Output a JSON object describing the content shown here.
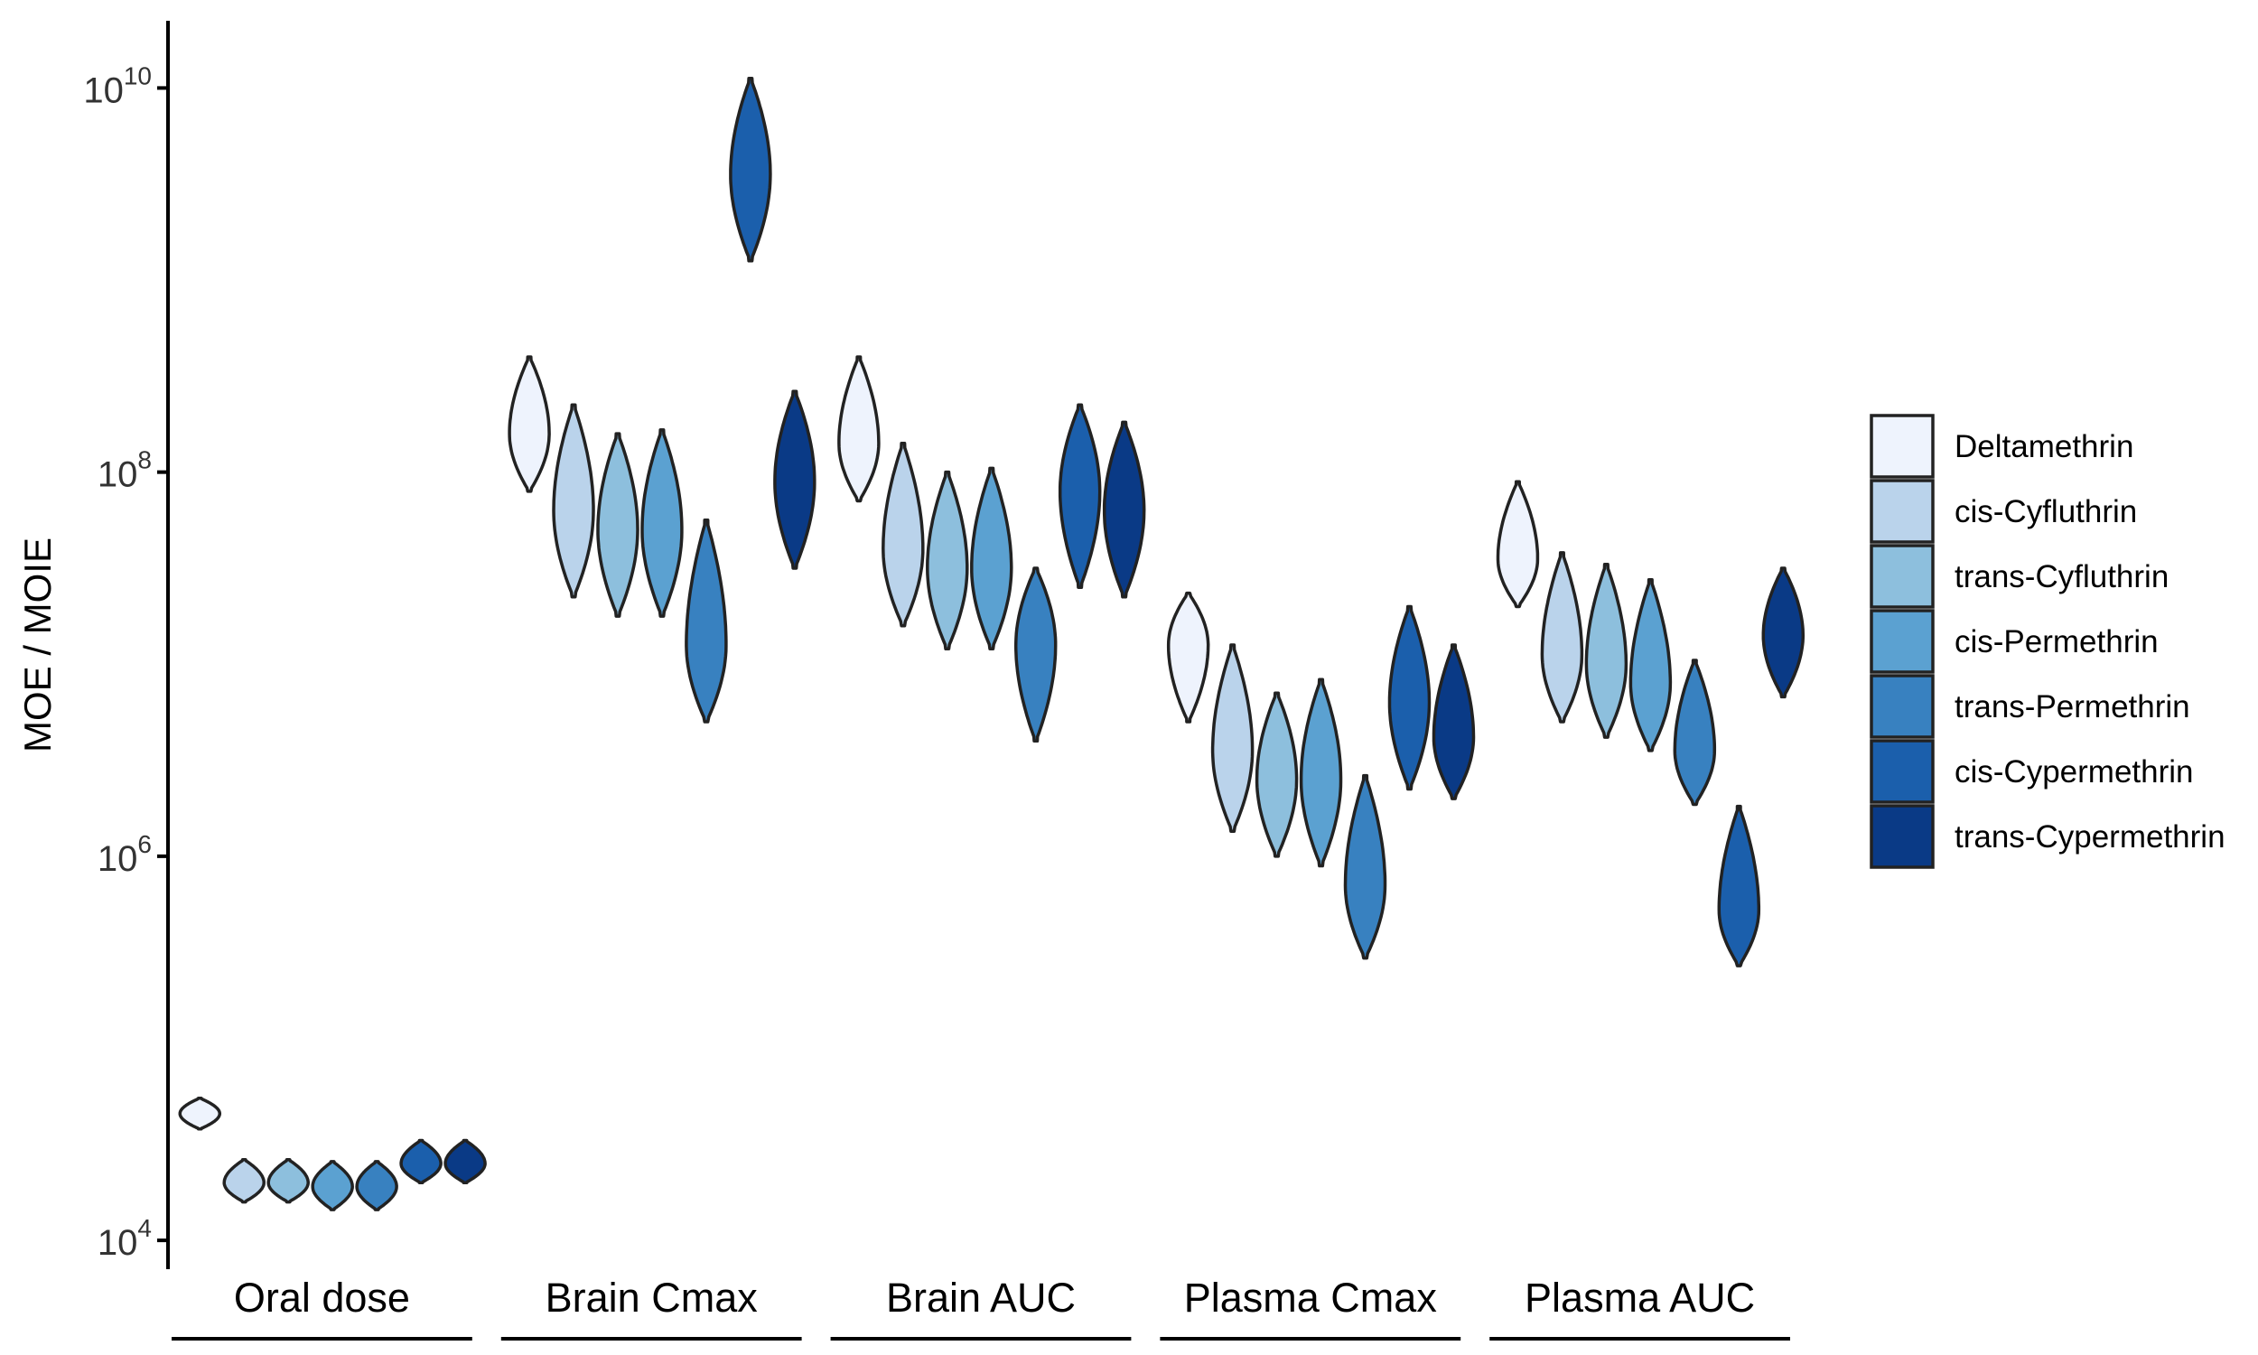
{
  "chart_data": {
    "type": "violin",
    "ylabel": "MOE / MOIE",
    "yscale": "log",
    "ylim_log10": [
      3.85,
      10.35
    ],
    "y_ticks": [
      {
        "base": "10",
        "exp": "4",
        "value": 10000
      },
      {
        "base": "10",
        "exp": "6",
        "value": 1000000
      },
      {
        "base": "10",
        "exp": "8",
        "value": 100000000
      },
      {
        "base": "10",
        "exp": "10",
        "value": 10000000000
      }
    ],
    "groups": [
      "Oral dose",
      "Brain Cmax",
      "Brain AUC",
      "Plasma Cmax",
      "Plasma AUC"
    ],
    "legend_position": "right",
    "series": [
      {
        "name": "Deltamethrin",
        "color": "#eef3fd"
      },
      {
        "name": "cis-Cyfluthrin",
        "color": "#bad3eb"
      },
      {
        "name": "trans-Cyfluthrin",
        "color": "#8dbfdd"
      },
      {
        "name": "cis-Permethrin",
        "color": "#5ba1d1"
      },
      {
        "name": "trans-Permethrin",
        "color": "#3881c0"
      },
      {
        "name": "cis-Cypermethrin",
        "color": "#1b5fac"
      },
      {
        "name": "trans-Cypermethrin",
        "color": "#0a3a86"
      }
    ],
    "violins": [
      {
        "group": "Oral dose",
        "series": "Deltamethrin",
        "min_log10": 4.58,
        "median_log10": 4.66,
        "max_log10": 4.74
      },
      {
        "group": "Oral dose",
        "series": "cis-Cyfluthrin",
        "min_log10": 4.2,
        "median_log10": 4.3,
        "max_log10": 4.42
      },
      {
        "group": "Oral dose",
        "series": "trans-Cyfluthrin",
        "min_log10": 4.2,
        "median_log10": 4.3,
        "max_log10": 4.42
      },
      {
        "group": "Oral dose",
        "series": "cis-Permethrin",
        "min_log10": 4.16,
        "median_log10": 4.28,
        "max_log10": 4.41
      },
      {
        "group": "Oral dose",
        "series": "trans-Permethrin",
        "min_log10": 4.16,
        "median_log10": 4.28,
        "max_log10": 4.41
      },
      {
        "group": "Oral dose",
        "series": "cis-Cypermethrin",
        "min_log10": 4.3,
        "median_log10": 4.4,
        "max_log10": 4.52
      },
      {
        "group": "Oral dose",
        "series": "trans-Cypermethrin",
        "min_log10": 4.3,
        "median_log10": 4.4,
        "max_log10": 4.52
      },
      {
        "group": "Brain Cmax",
        "series": "Deltamethrin",
        "min_log10": 7.9,
        "median_log10": 8.2,
        "max_log10": 8.6
      },
      {
        "group": "Brain Cmax",
        "series": "cis-Cyfluthrin",
        "min_log10": 7.35,
        "median_log10": 7.8,
        "max_log10": 8.35
      },
      {
        "group": "Brain Cmax",
        "series": "trans-Cyfluthrin",
        "min_log10": 7.25,
        "median_log10": 7.7,
        "max_log10": 8.2
      },
      {
        "group": "Brain Cmax",
        "series": "cis-Permethrin",
        "min_log10": 7.25,
        "median_log10": 7.7,
        "max_log10": 8.22
      },
      {
        "group": "Brain Cmax",
        "series": "trans-Permethrin",
        "min_log10": 6.7,
        "median_log10": 7.1,
        "max_log10": 7.75
      },
      {
        "group": "Brain Cmax",
        "series": "cis-Cypermethrin",
        "min_log10": 9.1,
        "median_log10": 9.55,
        "max_log10": 10.05
      },
      {
        "group": "Brain Cmax",
        "series": "trans-Cypermethrin",
        "min_log10": 7.5,
        "median_log10": 7.95,
        "max_log10": 8.42
      },
      {
        "group": "Brain AUC",
        "series": "Deltamethrin",
        "min_log10": 7.85,
        "median_log10": 8.15,
        "max_log10": 8.6
      },
      {
        "group": "Brain AUC",
        "series": "cis-Cyfluthrin",
        "min_log10": 7.2,
        "median_log10": 7.6,
        "max_log10": 8.15
      },
      {
        "group": "Brain AUC",
        "series": "trans-Cyfluthrin",
        "min_log10": 7.08,
        "median_log10": 7.5,
        "max_log10": 8.0
      },
      {
        "group": "Brain AUC",
        "series": "cis-Permethrin",
        "min_log10": 7.08,
        "median_log10": 7.5,
        "max_log10": 8.02
      },
      {
        "group": "Brain AUC",
        "series": "trans-Permethrin",
        "min_log10": 6.6,
        "median_log10": 7.1,
        "max_log10": 7.5
      },
      {
        "group": "Brain AUC",
        "series": "cis-Cypermethrin",
        "min_log10": 7.4,
        "median_log10": 7.9,
        "max_log10": 8.35
      },
      {
        "group": "Brain AUC",
        "series": "trans-Cypermethrin",
        "min_log10": 7.35,
        "median_log10": 7.8,
        "max_log10": 8.26
      },
      {
        "group": "Plasma Cmax",
        "series": "Deltamethrin",
        "min_log10": 6.7,
        "median_log10": 7.1,
        "max_log10": 7.37
      },
      {
        "group": "Plasma Cmax",
        "series": "cis-Cyfluthrin",
        "min_log10": 6.13,
        "median_log10": 6.55,
        "max_log10": 7.1
      },
      {
        "group": "Plasma Cmax",
        "series": "trans-Cyfluthrin",
        "min_log10": 6.0,
        "median_log10": 6.4,
        "max_log10": 6.85
      },
      {
        "group": "Plasma Cmax",
        "series": "cis-Permethrin",
        "min_log10": 5.95,
        "median_log10": 6.4,
        "max_log10": 6.92
      },
      {
        "group": "Plasma Cmax",
        "series": "trans-Permethrin",
        "min_log10": 5.47,
        "median_log10": 5.85,
        "max_log10": 6.42
      },
      {
        "group": "Plasma Cmax",
        "series": "cis-Cypermethrin",
        "min_log10": 6.35,
        "median_log10": 6.8,
        "max_log10": 7.3
      },
      {
        "group": "Plasma Cmax",
        "series": "trans-Cypermethrin",
        "min_log10": 6.3,
        "median_log10": 6.62,
        "max_log10": 7.1
      },
      {
        "group": "Plasma AUC",
        "series": "Deltamethrin",
        "min_log10": 7.3,
        "median_log10": 7.55,
        "max_log10": 7.95
      },
      {
        "group": "Plasma AUC",
        "series": "cis-Cyfluthrin",
        "min_log10": 6.7,
        "median_log10": 7.05,
        "max_log10": 7.58
      },
      {
        "group": "Plasma AUC",
        "series": "trans-Cyfluthrin",
        "min_log10": 6.62,
        "median_log10": 7.0,
        "max_log10": 7.52
      },
      {
        "group": "Plasma AUC",
        "series": "cis-Permethrin",
        "min_log10": 6.55,
        "median_log10": 6.9,
        "max_log10": 7.44
      },
      {
        "group": "Plasma AUC",
        "series": "trans-Permethrin",
        "min_log10": 6.27,
        "median_log10": 6.55,
        "max_log10": 7.02
      },
      {
        "group": "Plasma AUC",
        "series": "cis-Cypermethrin",
        "min_log10": 5.43,
        "median_log10": 5.72,
        "max_log10": 6.26
      },
      {
        "group": "Plasma AUC",
        "series": "trans-Cypermethrin",
        "min_log10": 6.83,
        "median_log10": 7.15,
        "max_log10": 7.5
      }
    ]
  }
}
